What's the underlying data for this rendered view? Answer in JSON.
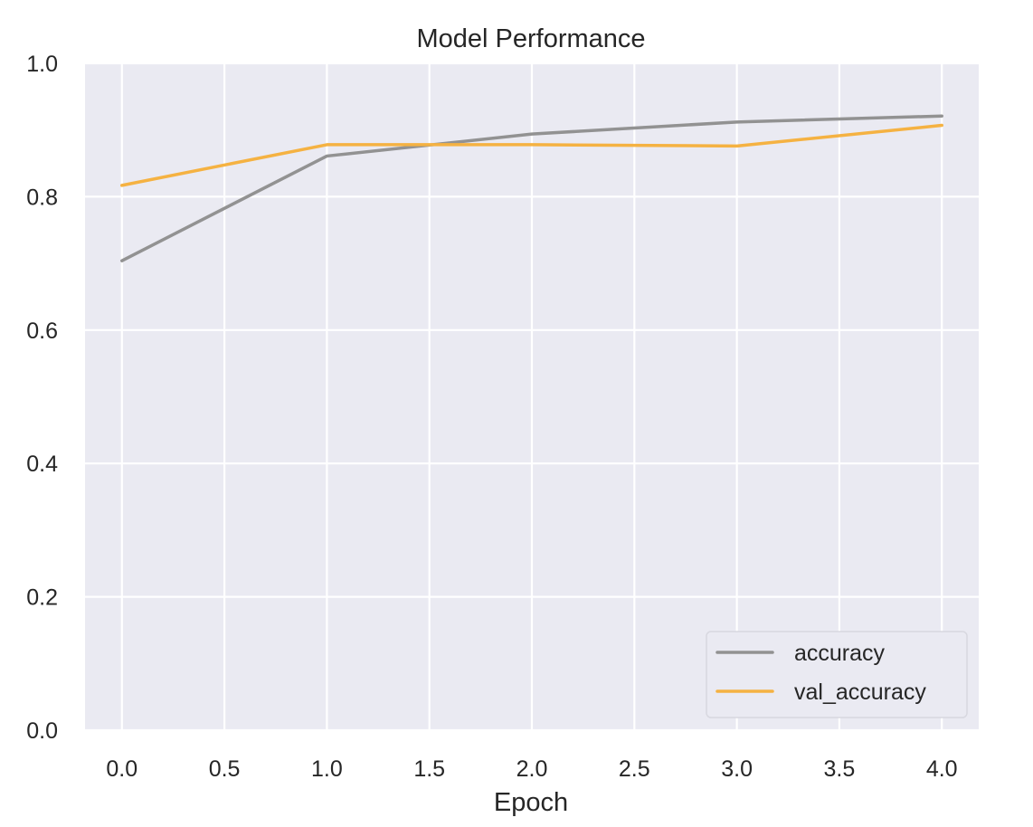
{
  "chart_data": {
    "type": "line",
    "title": "Model Performance",
    "xlabel": "Epoch",
    "ylabel": "",
    "x": [
      0,
      1,
      2,
      3,
      4
    ],
    "xlim": [
      -0.18,
      4.18
    ],
    "ylim": [
      0.0,
      1.0
    ],
    "xticks": [
      0.0,
      0.5,
      1.0,
      1.5,
      2.0,
      2.5,
      3.0,
      3.5,
      4.0
    ],
    "xtick_labels": [
      "0.0",
      "0.5",
      "1.0",
      "1.5",
      "2.0",
      "2.5",
      "3.0",
      "3.5",
      "4.0"
    ],
    "yticks": [
      0.0,
      0.2,
      0.4,
      0.6,
      0.8,
      1.0
    ],
    "ytick_labels": [
      "0.0",
      "0.2",
      "0.4",
      "0.6",
      "0.8",
      "1.0"
    ],
    "grid": true,
    "legend_position": "lower-right",
    "series": [
      {
        "name": "accuracy",
        "color": "#929292",
        "values": [
          0.704,
          0.861,
          0.894,
          0.912,
          0.921
        ]
      },
      {
        "name": "val_accuracy",
        "color": "#F5B242",
        "values": [
          0.817,
          0.878,
          0.878,
          0.876,
          0.907
        ]
      }
    ]
  },
  "colors": {
    "plot_background": "#EAEAF2",
    "grid": "#FFFFFF",
    "text": "#262626"
  }
}
